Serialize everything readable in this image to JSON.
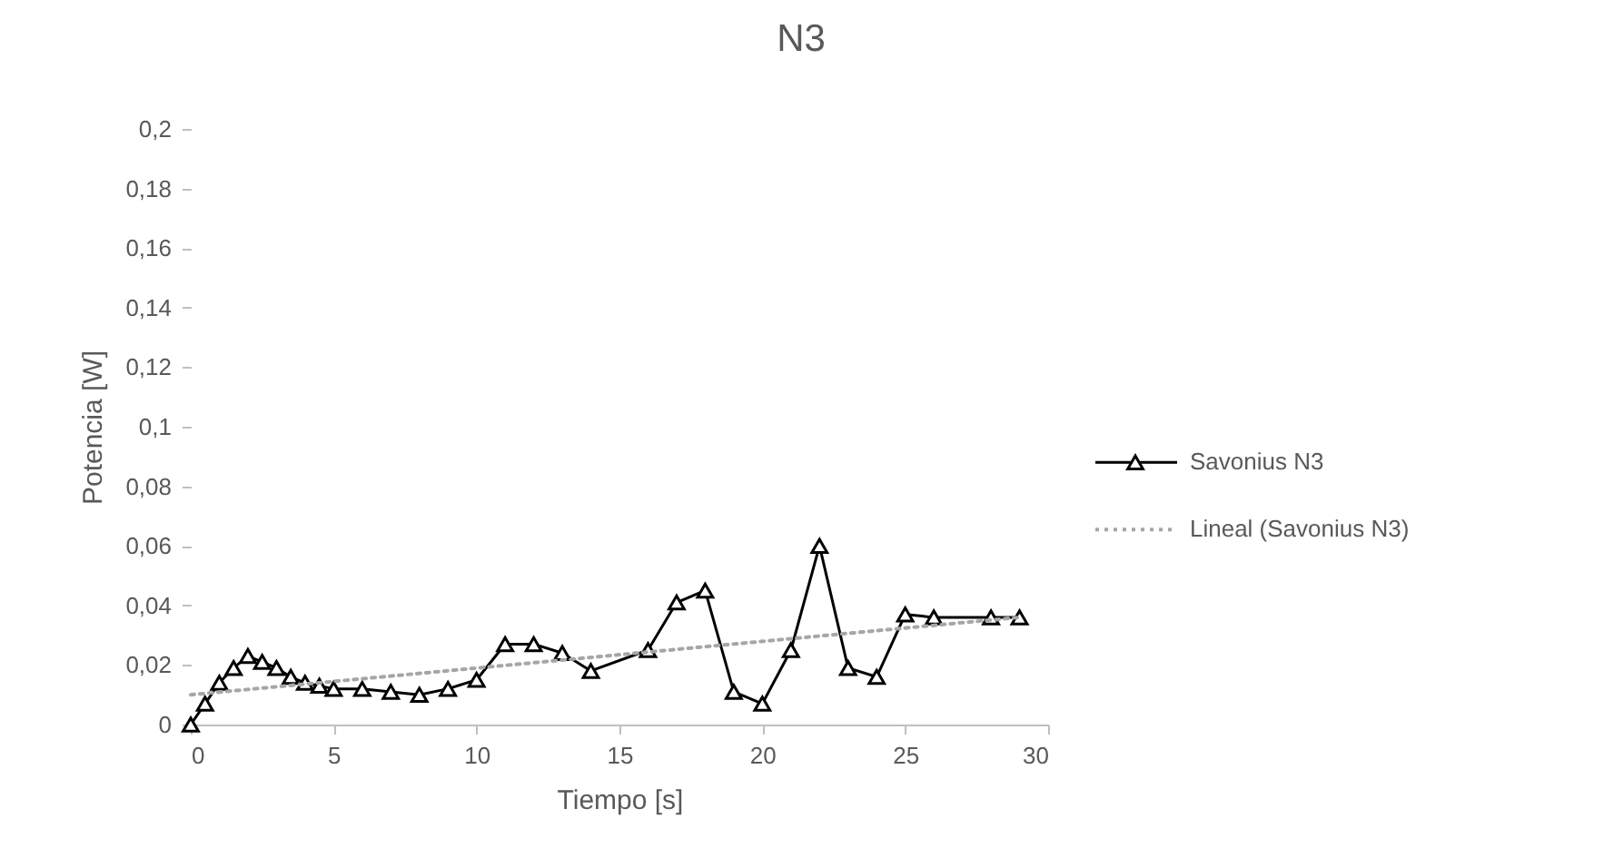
{
  "chart_data": {
    "type": "line",
    "title": "N3",
    "xlabel": "Tiempo [s]",
    "ylabel": "Potencia [W]",
    "xlim": [
      0,
      30
    ],
    "xticks": [
      0,
      5,
      10,
      15,
      20,
      25,
      30
    ],
    "ylim": [
      0,
      0.2
    ],
    "yticks": [
      0,
      {
        "value": 0.02,
        "label": "0,02"
      },
      {
        "value": 0.04,
        "label": "0,04"
      },
      {
        "value": 0.06,
        "label": "0,06"
      },
      {
        "value": 0.08,
        "label": "0,08"
      },
      {
        "value": 0.1,
        "label": "0,1"
      },
      {
        "value": 0.12,
        "label": "0,12"
      },
      {
        "value": 0.14,
        "label": "0,14"
      },
      {
        "value": 0.16,
        "label": "0,16"
      },
      {
        "value": 0.18,
        "label": "0,18"
      },
      {
        "value": 0.2,
        "label": "0,2"
      }
    ],
    "grid": false,
    "legend": "right",
    "marker": "triangle",
    "line_style": "solid",
    "series": [
      {
        "name": "Savonius N3",
        "color": "#000000",
        "x": [
          0,
          0.5,
          1,
          1.5,
          2,
          2.5,
          3,
          3.5,
          4,
          4.5,
          5,
          6,
          7,
          8,
          9,
          10,
          11,
          12,
          13,
          14,
          16,
          17,
          18,
          19,
          20,
          21,
          22,
          23,
          24,
          25,
          26,
          28,
          29
        ],
        "values": [
          0,
          0.007,
          0.014,
          0.019,
          0.023,
          0.021,
          0.019,
          0.016,
          0.014,
          0.013,
          0.012,
          0.012,
          0.011,
          0.01,
          0.012,
          0.015,
          0.027,
          0.027,
          0.024,
          0.018,
          0.025,
          0.041,
          0.045,
          0.011,
          0.007,
          0.025,
          0.06,
          0.019,
          0.016,
          0.037,
          0.036,
          0.036,
          0.036
        ]
      },
      {
        "name": "Lineal (Savonius N3)",
        "color": "#a6a6a6",
        "x": [
          0,
          29
        ],
        "values": [
          0.01,
          0.036
        ],
        "marker": "none",
        "line_style": "dotted"
      }
    ]
  }
}
